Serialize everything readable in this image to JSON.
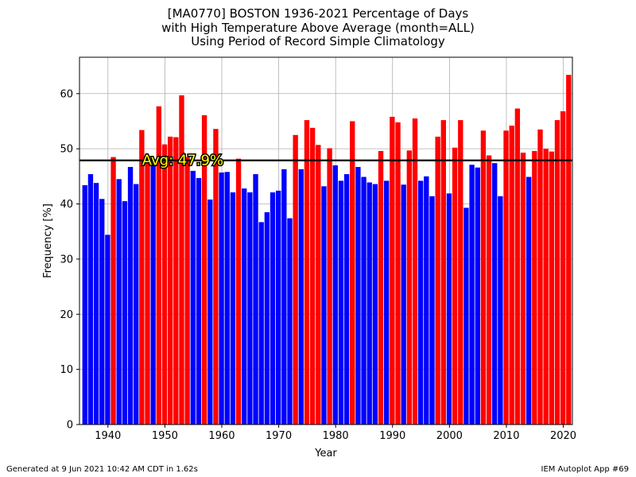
{
  "chart_data": {
    "type": "bar",
    "title": [
      "[MA0770] BOSTON 1936-2021 Percentage of Days",
      "with High Temperature  Above Average (month=ALL)",
      "Using Period of Record Simple Climatology"
    ],
    "xlabel": "Year",
    "ylabel": "Frequency [%]",
    "xlim": [
      1935.0,
      2021.6
    ],
    "ylim": [
      0,
      66.6
    ],
    "xticks": [
      1940,
      1950,
      1960,
      1970,
      1980,
      1990,
      2000,
      2010,
      2020
    ],
    "yticks": [
      0,
      10,
      20,
      30,
      40,
      50,
      60
    ],
    "grid": true,
    "average": 47.9,
    "average_label": "Avg: 47.9%",
    "colors": {
      "above": "#ff0000",
      "below": "#0000ff",
      "average_line": "#000000",
      "avg_text": "#ffff00"
    },
    "x": [
      1936,
      1937,
      1938,
      1939,
      1940,
      1941,
      1942,
      1943,
      1944,
      1945,
      1946,
      1947,
      1948,
      1949,
      1950,
      1951,
      1952,
      1953,
      1954,
      1955,
      1956,
      1957,
      1958,
      1959,
      1960,
      1961,
      1962,
      1963,
      1964,
      1965,
      1966,
      1967,
      1968,
      1969,
      1970,
      1971,
      1972,
      1973,
      1974,
      1975,
      1976,
      1977,
      1978,
      1979,
      1980,
      1981,
      1982,
      1983,
      1984,
      1985,
      1986,
      1987,
      1988,
      1989,
      1990,
      1991,
      1992,
      1993,
      1994,
      1995,
      1996,
      1997,
      1998,
      1999,
      2000,
      2001,
      2002,
      2003,
      2004,
      2005,
      2006,
      2007,
      2008,
      2009,
      2010,
      2011,
      2012,
      2013,
      2014,
      2015,
      2016,
      2017,
      2018,
      2019,
      2020,
      2021
    ],
    "values": [
      43.4,
      45.4,
      43.8,
      40.9,
      34.4,
      48.5,
      44.5,
      40.5,
      46.7,
      43.6,
      53.4,
      48.2,
      47.0,
      57.7,
      50.8,
      52.2,
      52.1,
      59.7,
      48.5,
      46.0,
      44.7,
      56.1,
      40.8,
      53.6,
      45.7,
      45.8,
      42.1,
      48.2,
      42.8,
      42.1,
      45.4,
      36.7,
      38.5,
      42.1,
      42.4,
      46.3,
      37.4,
      52.5,
      46.3,
      55.2,
      53.8,
      50.7,
      43.2,
      50.1,
      47.0,
      44.2,
      45.4,
      55.0,
      46.7,
      44.9,
      43.9,
      43.6,
      49.6,
      44.2,
      55.8,
      54.8,
      43.5,
      49.7,
      55.5,
      44.2,
      45.0,
      41.4,
      52.2,
      55.2,
      41.9,
      50.2,
      55.2,
      39.3,
      47.1,
      46.6,
      53.3,
      48.8,
      47.4,
      41.4,
      53.3,
      54.2,
      57.3,
      49.3,
      44.9,
      49.6,
      53.5,
      50.0,
      49.5,
      55.2,
      56.8,
      63.4
    ]
  },
  "footer": {
    "left": "Generated at 9 Jun 2021 10:42 AM CDT in 1.62s",
    "right": "IEM Autoplot App #69"
  }
}
